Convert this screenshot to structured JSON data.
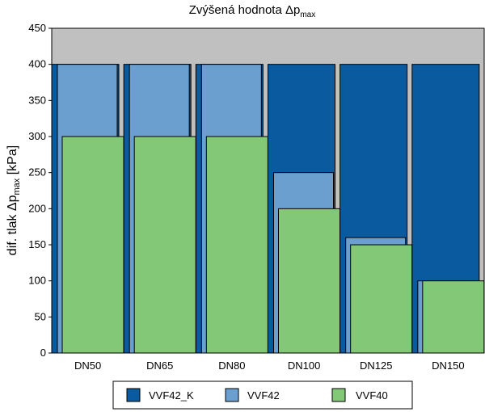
{
  "chart_data": {
    "type": "bar",
    "title": "Zvýšená hodnota Δp",
    "title_sub": "max",
    "ylabel": "dif. tlak Δp",
    "ylabel_sub": "max",
    "ylabel_unit": " [kPa]",
    "categories": [
      "DN50",
      "DN65",
      "DN80",
      "DN100",
      "DN125",
      "DN150"
    ],
    "yticks": [
      0,
      50,
      100,
      150,
      200,
      250,
      300,
      350,
      400,
      450
    ],
    "ylim": [
      0,
      450
    ],
    "grid": false,
    "legend_position": "bottom",
    "series": [
      {
        "name": "VVF42_K",
        "color": "#0a5aa0",
        "values": [
          400,
          400,
          400,
          400,
          400,
          400
        ]
      },
      {
        "name": "VVF42",
        "color": "#6b9fcf",
        "values": [
          400,
          400,
          400,
          250,
          160,
          100
        ]
      },
      {
        "name": "VVF40",
        "color": "#82c877",
        "values": [
          300,
          300,
          300,
          200,
          150,
          100
        ]
      }
    ],
    "plot_background": "#c0c0c0"
  }
}
